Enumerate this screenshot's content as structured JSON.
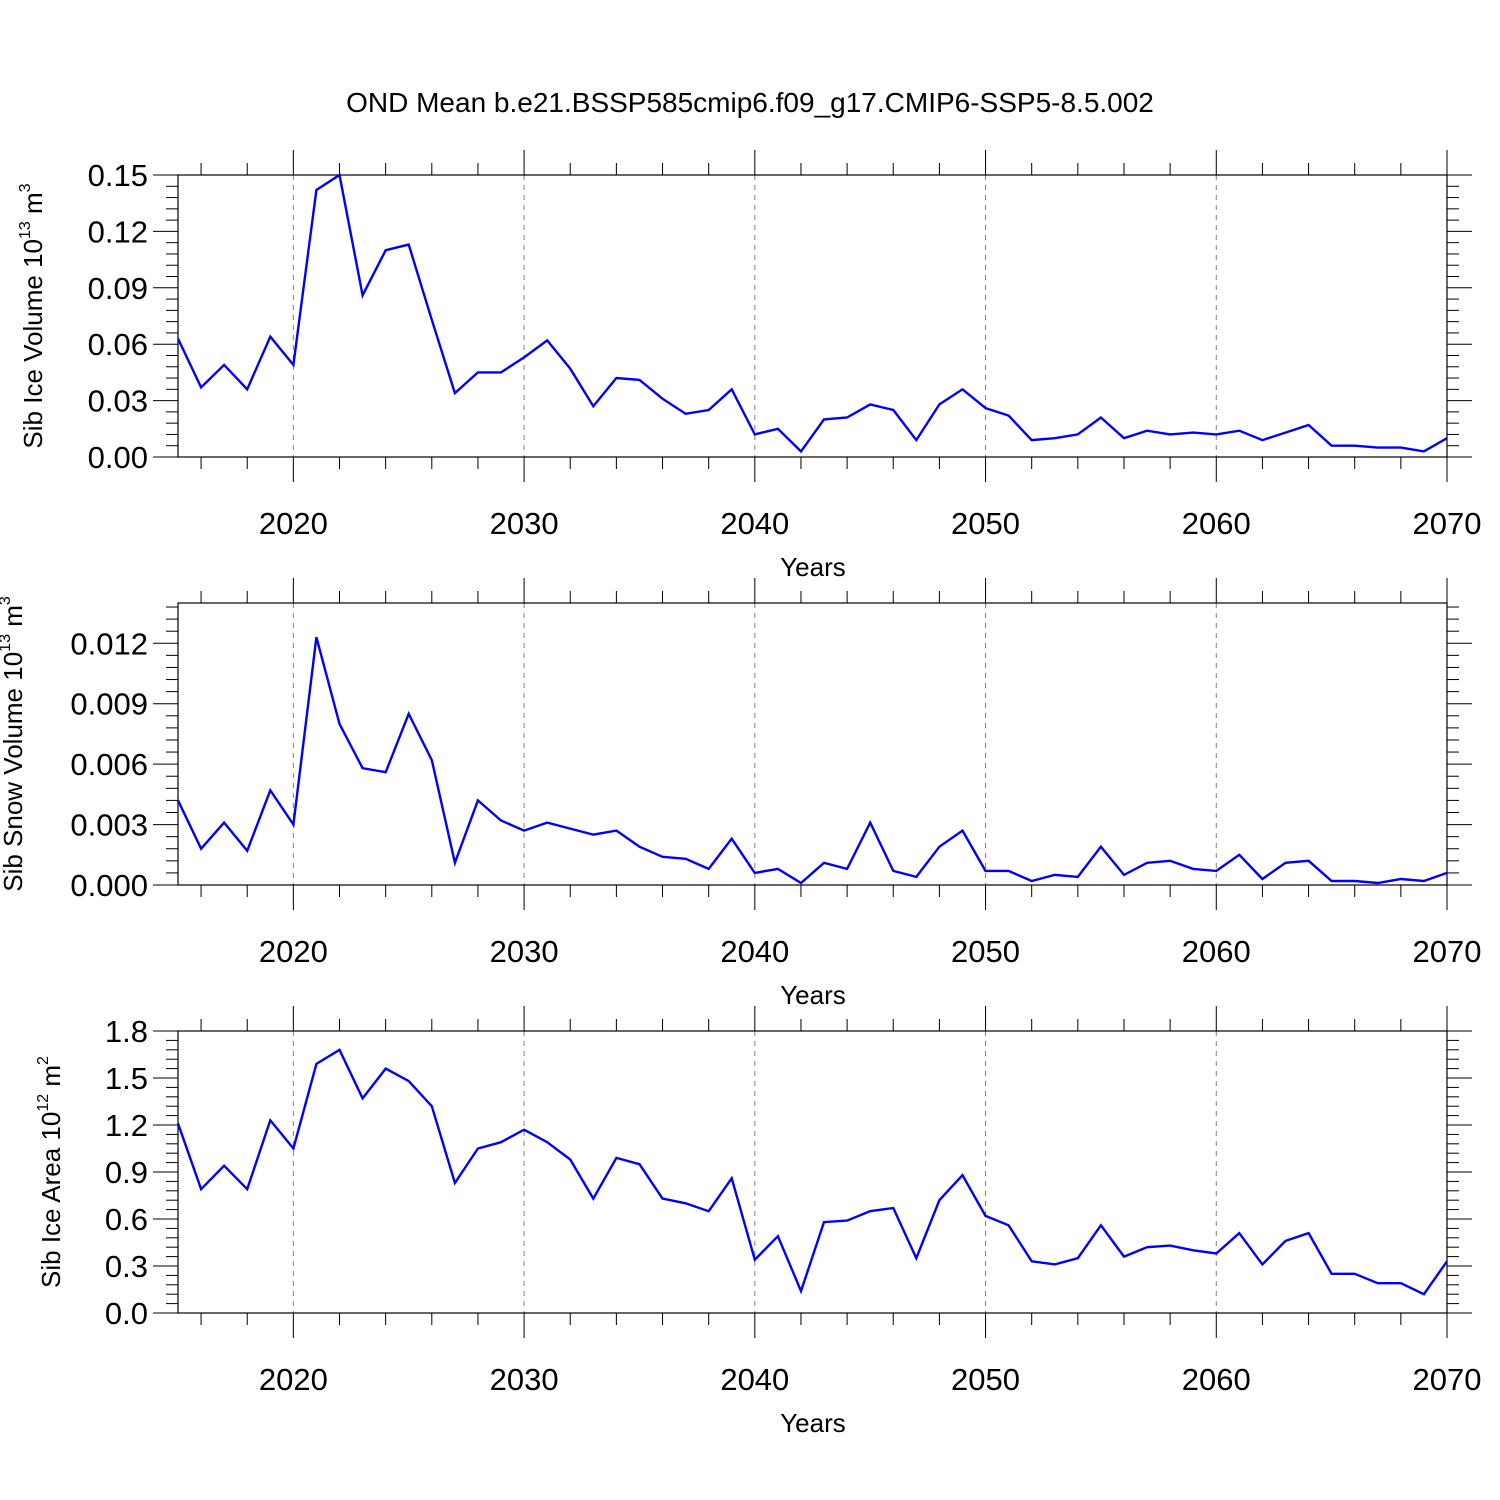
{
  "title": "OND Mean b.e21.BSSP585cmip6.f09_g17.CMIP6-SSP5-8.5.002",
  "colors": {
    "series": "#0000ff",
    "axis": "#000000",
    "grid": "#808080"
  },
  "chart_data": [
    {
      "type": "line",
      "ylabel_main": "Sib Ice Volume 10",
      "ylabel_exp": "13",
      "ylabel_unit": " m",
      "ylabel_unit_exp": "3",
      "xlabel": "Years",
      "xlim": [
        2015,
        2070
      ],
      "ylim": [
        0,
        0.15
      ],
      "yticks": [
        "0.00",
        "0.03",
        "0.06",
        "0.09",
        "0.12",
        "0.15"
      ],
      "ytick_values": [
        0,
        0.03,
        0.06,
        0.09,
        0.12,
        0.15
      ],
      "xticks": [
        "2020",
        "2030",
        "2040",
        "2050",
        "2060",
        "2070"
      ],
      "xtick_values": [
        2020,
        2030,
        2040,
        2050,
        2060,
        2070
      ],
      "x": [
        2015,
        2016,
        2017,
        2018,
        2019,
        2020,
        2021,
        2022,
        2023,
        2024,
        2025,
        2026,
        2027,
        2028,
        2029,
        2030,
        2031,
        2032,
        2033,
        2034,
        2035,
        2036,
        2037,
        2038,
        2039,
        2040,
        2041,
        2042,
        2043,
        2044,
        2045,
        2046,
        2047,
        2048,
        2049,
        2050,
        2051,
        2052,
        2053,
        2054,
        2055,
        2056,
        2057,
        2058,
        2059,
        2060,
        2061,
        2062,
        2063,
        2064,
        2065,
        2066,
        2067,
        2068,
        2069,
        2070
      ],
      "values": [
        0.063,
        0.037,
        0.049,
        0.036,
        0.064,
        0.049,
        0.142,
        0.15,
        0.086,
        0.11,
        0.113,
        0.073,
        0.034,
        0.045,
        0.045,
        0.053,
        0.062,
        0.047,
        0.027,
        0.042,
        0.041,
        0.031,
        0.023,
        0.025,
        0.036,
        0.012,
        0.015,
        0.003,
        0.02,
        0.021,
        0.028,
        0.025,
        0.009,
        0.028,
        0.036,
        0.026,
        0.022,
        0.009,
        0.01,
        0.012,
        0.021,
        0.01,
        0.014,
        0.012,
        0.013,
        0.012,
        0.014,
        0.009,
        0.013,
        0.017,
        0.006,
        0.006,
        0.005,
        0.005,
        0.003,
        0.01
      ]
    },
    {
      "type": "line",
      "ylabel_main": "Sib Snow Volume 10",
      "ylabel_exp": "13",
      "ylabel_unit": " m",
      "ylabel_unit_exp": "3",
      "xlabel": "Years",
      "xlim": [
        2015,
        2070
      ],
      "ylim": [
        0,
        0.014
      ],
      "yticks": [
        "0.000",
        "0.003",
        "0.006",
        "0.009",
        "0.012"
      ],
      "ytick_values": [
        0,
        0.003,
        0.006,
        0.009,
        0.012
      ],
      "xticks": [
        "2020",
        "2030",
        "2040",
        "2050",
        "2060",
        "2070"
      ],
      "xtick_values": [
        2020,
        2030,
        2040,
        2050,
        2060,
        2070
      ],
      "x": [
        2015,
        2016,
        2017,
        2018,
        2019,
        2020,
        2021,
        2022,
        2023,
        2024,
        2025,
        2026,
        2027,
        2028,
        2029,
        2030,
        2031,
        2032,
        2033,
        2034,
        2035,
        2036,
        2037,
        2038,
        2039,
        2040,
        2041,
        2042,
        2043,
        2044,
        2045,
        2046,
        2047,
        2048,
        2049,
        2050,
        2051,
        2052,
        2053,
        2054,
        2055,
        2056,
        2057,
        2058,
        2059,
        2060,
        2061,
        2062,
        2063,
        2064,
        2065,
        2066,
        2067,
        2068,
        2069,
        2070
      ],
      "values": [
        0.0042,
        0.0018,
        0.0031,
        0.0017,
        0.0047,
        0.003,
        0.0123,
        0.008,
        0.0058,
        0.0056,
        0.0085,
        0.0062,
        0.0011,
        0.0042,
        0.0032,
        0.0027,
        0.0031,
        0.0028,
        0.0025,
        0.0027,
        0.0019,
        0.0014,
        0.0013,
        0.0008,
        0.0023,
        0.0006,
        0.0008,
        0.0001,
        0.0011,
        0.0008,
        0.0031,
        0.0007,
        0.0004,
        0.0019,
        0.0027,
        0.0007,
        0.0007,
        0.0002,
        0.0005,
        0.0004,
        0.0019,
        0.0005,
        0.0011,
        0.0012,
        0.0008,
        0.0007,
        0.0015,
        0.0003,
        0.0011,
        0.0012,
        0.0002,
        0.0002,
        0.0001,
        0.0003,
        0.0002,
        0.0006
      ]
    },
    {
      "type": "line",
      "ylabel_main": "Sib Ice Area 10",
      "ylabel_exp": "12",
      "ylabel_unit": " m",
      "ylabel_unit_exp": "2",
      "xlabel": "Years",
      "xlim": [
        2015,
        2070
      ],
      "ylim": [
        0,
        1.8
      ],
      "yticks": [
        "0.0",
        "0.3",
        "0.6",
        "0.9",
        "1.2",
        "1.5",
        "1.8"
      ],
      "ytick_values": [
        0,
        0.3,
        0.6,
        0.9,
        1.2,
        1.5,
        1.8
      ],
      "xticks": [
        "2020",
        "2030",
        "2040",
        "2050",
        "2060",
        "2070"
      ],
      "xtick_values": [
        2020,
        2030,
        2040,
        2050,
        2060,
        2070
      ],
      "x": [
        2015,
        2016,
        2017,
        2018,
        2019,
        2020,
        2021,
        2022,
        2023,
        2024,
        2025,
        2026,
        2027,
        2028,
        2029,
        2030,
        2031,
        2032,
        2033,
        2034,
        2035,
        2036,
        2037,
        2038,
        2039,
        2040,
        2041,
        2042,
        2043,
        2044,
        2045,
        2046,
        2047,
        2048,
        2049,
        2050,
        2051,
        2052,
        2053,
        2054,
        2055,
        2056,
        2057,
        2058,
        2059,
        2060,
        2061,
        2062,
        2063,
        2064,
        2065,
        2066,
        2067,
        2068,
        2069,
        2070
      ],
      "values": [
        1.21,
        0.79,
        0.94,
        0.79,
        1.23,
        1.05,
        1.59,
        1.68,
        1.37,
        1.56,
        1.48,
        1.32,
        0.83,
        1.05,
        1.09,
        1.17,
        1.09,
        0.98,
        0.73,
        0.99,
        0.95,
        0.73,
        0.7,
        0.65,
        0.86,
        0.34,
        0.49,
        0.14,
        0.58,
        0.59,
        0.65,
        0.67,
        0.35,
        0.72,
        0.88,
        0.62,
        0.56,
        0.33,
        0.31,
        0.35,
        0.56,
        0.36,
        0.42,
        0.43,
        0.4,
        0.38,
        0.51,
        0.31,
        0.46,
        0.51,
        0.25,
        0.25,
        0.19,
        0.19,
        0.12,
        0.33
      ]
    }
  ]
}
